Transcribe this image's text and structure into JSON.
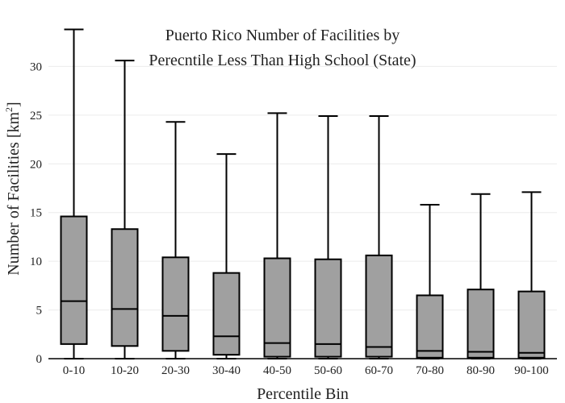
{
  "chart_data": {
    "type": "box",
    "title_lines": [
      "Puerto Rico Number of Facilities by",
      "Perecntile Less Than High School (State)"
    ],
    "xlabel": "Percentile Bin",
    "ylabel": "Number of Facilities  [km",
    "ylabel_sup": "2",
    "ylabel_end": "]",
    "ylim": [
      0,
      34.5
    ],
    "yticks": [
      0,
      5,
      10,
      15,
      20,
      25,
      30
    ],
    "grid": true,
    "categories": [
      "0-10",
      "10-20",
      "20-30",
      "30-40",
      "40-50",
      "50-60",
      "60-70",
      "70-80",
      "80-90",
      "90-100"
    ],
    "boxes": [
      {
        "min": 0,
        "q1": 1.5,
        "median": 5.9,
        "q3": 14.6,
        "max": 33.8
      },
      {
        "min": 0,
        "q1": 1.3,
        "median": 5.1,
        "q3": 13.3,
        "max": 30.6
      },
      {
        "min": 0,
        "q1": 0.8,
        "median": 4.4,
        "q3": 10.4,
        "max": 24.3
      },
      {
        "min": 0,
        "q1": 0.4,
        "median": 2.3,
        "q3": 8.8,
        "max": 21.0
      },
      {
        "min": 0,
        "q1": 0.2,
        "median": 1.6,
        "q3": 10.3,
        "max": 25.2
      },
      {
        "min": 0,
        "q1": 0.2,
        "median": 1.5,
        "q3": 10.2,
        "max": 24.9
      },
      {
        "min": 0,
        "q1": 0.2,
        "median": 1.2,
        "q3": 10.6,
        "max": 24.9
      },
      {
        "min": 0,
        "q1": 0.1,
        "median": 0.8,
        "q3": 6.5,
        "max": 15.8
      },
      {
        "min": 0,
        "q1": 0.1,
        "median": 0.7,
        "q3": 7.1,
        "max": 16.9
      },
      {
        "min": 0,
        "q1": 0.1,
        "median": 0.6,
        "q3": 6.9,
        "max": 17.1
      }
    ]
  }
}
